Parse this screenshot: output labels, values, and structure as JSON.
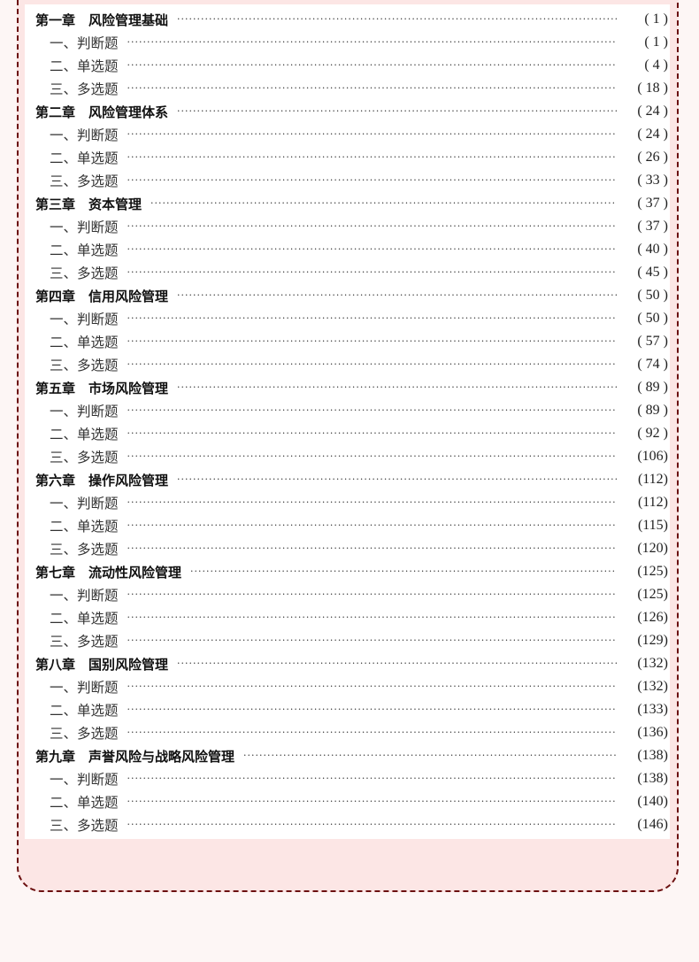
{
  "colors": {
    "background": "#fdf6f5",
    "card": "#fce6e5",
    "border": "#6b1010",
    "sheet": "#ffffff"
  },
  "toc": [
    {
      "type": "chapter",
      "label": "第一章　风险管理基础",
      "page": "( 1 )"
    },
    {
      "type": "section",
      "label": "一、判断题",
      "page": "( 1 )"
    },
    {
      "type": "section",
      "label": "二、单选题",
      "page": "( 4 )"
    },
    {
      "type": "section",
      "label": "三、多选题",
      "page": "( 18 )"
    },
    {
      "type": "chapter",
      "label": "第二章　风险管理体系",
      "page": "( 24 )"
    },
    {
      "type": "section",
      "label": "一、判断题",
      "page": "( 24 )"
    },
    {
      "type": "section",
      "label": "二、单选题",
      "page": "( 26 )"
    },
    {
      "type": "section",
      "label": "三、多选题",
      "page": "( 33 )"
    },
    {
      "type": "chapter",
      "label": "第三章　资本管理",
      "page": "( 37 )"
    },
    {
      "type": "section",
      "label": "一、判断题",
      "page": "( 37 )"
    },
    {
      "type": "section",
      "label": "二、单选题",
      "page": "( 40 )"
    },
    {
      "type": "section",
      "label": "三、多选题",
      "page": "( 45 )"
    },
    {
      "type": "chapter",
      "label": "第四章　信用风险管理",
      "page": "( 50 )"
    },
    {
      "type": "section",
      "label": "一、判断题",
      "page": "( 50 )"
    },
    {
      "type": "section",
      "label": "二、单选题",
      "page": "( 57 )"
    },
    {
      "type": "section",
      "label": "三、多选题",
      "page": "( 74 )"
    },
    {
      "type": "chapter",
      "label": "第五章　市场风险管理",
      "page": "( 89 )"
    },
    {
      "type": "section",
      "label": "一、判断题",
      "page": "( 89 )"
    },
    {
      "type": "section",
      "label": "二、单选题",
      "page": "( 92 )"
    },
    {
      "type": "section",
      "label": "三、多选题",
      "page": "(106)"
    },
    {
      "type": "chapter",
      "label": "第六章　操作风险管理",
      "page": "(112)"
    },
    {
      "type": "section",
      "label": "一、判断题",
      "page": "(112)"
    },
    {
      "type": "section",
      "label": "二、单选题",
      "page": "(115)"
    },
    {
      "type": "section",
      "label": "三、多选题",
      "page": "(120)"
    },
    {
      "type": "chapter",
      "label": "第七章　流动性风险管理",
      "page": "(125)"
    },
    {
      "type": "section",
      "label": "一、判断题",
      "page": "(125)"
    },
    {
      "type": "section",
      "label": "二、单选题",
      "page": "(126)"
    },
    {
      "type": "section",
      "label": "三、多选题",
      "page": "(129)"
    },
    {
      "type": "chapter",
      "label": "第八章　国别风险管理",
      "page": "(132)"
    },
    {
      "type": "section",
      "label": "一、判断题",
      "page": "(132)"
    },
    {
      "type": "section",
      "label": "二、单选题",
      "page": "(133)"
    },
    {
      "type": "section",
      "label": "三、多选题",
      "page": "(136)"
    },
    {
      "type": "chapter",
      "label": "第九章　声誉风险与战略风险管理",
      "page": "(138)"
    },
    {
      "type": "section",
      "label": "一、判断题",
      "page": "(138)"
    },
    {
      "type": "section",
      "label": "二、单选题",
      "page": "(140)"
    },
    {
      "type": "section",
      "label": "三、多选题",
      "page": "(146)"
    }
  ]
}
